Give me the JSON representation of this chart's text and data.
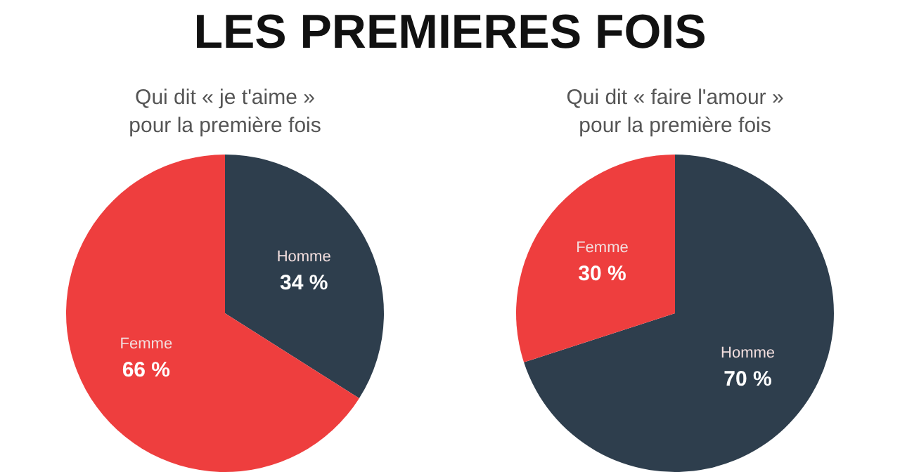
{
  "chart_data": [
    {
      "type": "other",
      "title": "LES PREMIERES FOIS"
    },
    {
      "type": "pie",
      "title": "Qui dit « je t'aime » pour la première fois",
      "categories": [
        "Homme",
        "Femme"
      ],
      "values": [
        34,
        66
      ],
      "colors": [
        "#2e3e4d",
        "#ee3e3e"
      ],
      "value_labels": [
        "34 %",
        "66 %"
      ],
      "legend": false
    },
    {
      "type": "pie",
      "title": "Qui dit « faire l'amour » pour la première fois",
      "categories": [
        "Homme",
        "Femme"
      ],
      "values": [
        70,
        30
      ],
      "colors": [
        "#2e3e4d",
        "#ee3e3e"
      ],
      "value_labels": [
        "70 %",
        "30 %"
      ],
      "legend": false
    }
  ]
}
